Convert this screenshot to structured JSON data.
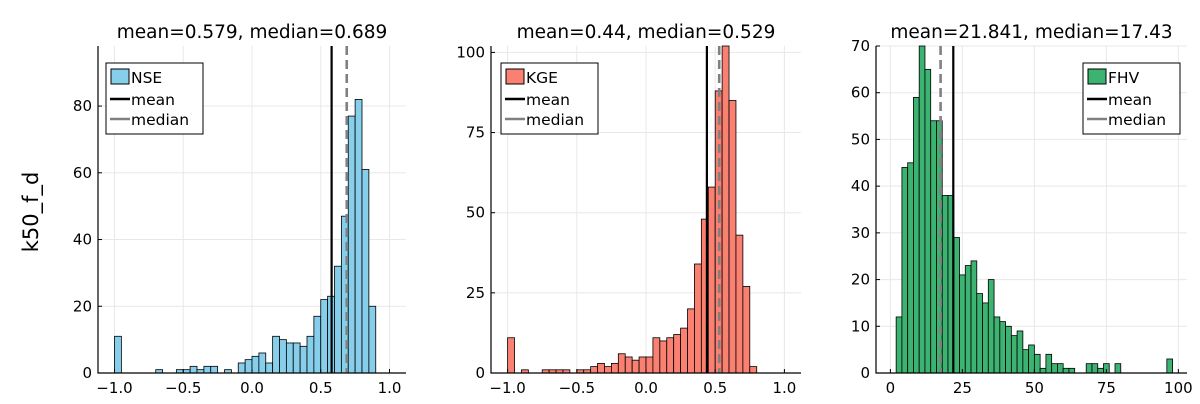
{
  "figure": {
    "ylabel": "k50_f_d"
  },
  "chart_data": [
    {
      "type": "histogram",
      "title": "mean=0.579, median=0.689",
      "series_name": "NSE",
      "color": "#87ceeb",
      "mean": 0.579,
      "median": 0.689,
      "xlim": [
        -1.12,
        1.12
      ],
      "ylim": [
        0,
        98
      ],
      "xticks": [
        -1.0,
        -0.5,
        0.0,
        0.5,
        1.0
      ],
      "xtick_labels": [
        "−1.0",
        "−0.5",
        "0.0",
        "0.5",
        "1.0"
      ],
      "yticks": [
        0,
        20,
        40,
        60,
        80
      ],
      "ytick_labels": [
        "0",
        "20",
        "40",
        "60",
        "80"
      ],
      "legend": {
        "position": "top-left",
        "entries": [
          "NSE",
          "mean",
          "median"
        ]
      },
      "bins": [
        [
          -1.0,
          -0.95,
          11
        ],
        [
          -0.7,
          -0.65,
          1
        ],
        [
          -0.55,
          -0.5,
          1
        ],
        [
          -0.5,
          -0.45,
          1
        ],
        [
          -0.45,
          -0.4,
          2
        ],
        [
          -0.4,
          -0.35,
          1
        ],
        [
          -0.35,
          -0.3,
          2
        ],
        [
          -0.3,
          -0.25,
          2
        ],
        [
          -0.2,
          -0.15,
          1
        ],
        [
          -0.1,
          -0.05,
          3
        ],
        [
          -0.05,
          0.0,
          4
        ],
        [
          0.0,
          0.05,
          5
        ],
        [
          0.05,
          0.1,
          6
        ],
        [
          0.1,
          0.15,
          3
        ],
        [
          0.15,
          0.2,
          11
        ],
        [
          0.2,
          0.25,
          10
        ],
        [
          0.25,
          0.3,
          9
        ],
        [
          0.3,
          0.35,
          9
        ],
        [
          0.35,
          0.4,
          8
        ],
        [
          0.4,
          0.45,
          11
        ],
        [
          0.45,
          0.5,
          17
        ],
        [
          0.5,
          0.55,
          22
        ],
        [
          0.55,
          0.6,
          23
        ],
        [
          0.6,
          0.65,
          32
        ],
        [
          0.65,
          0.7,
          47
        ],
        [
          0.7,
          0.75,
          77
        ],
        [
          0.75,
          0.8,
          82
        ],
        [
          0.8,
          0.85,
          61
        ],
        [
          0.85,
          0.9,
          20
        ]
      ]
    },
    {
      "type": "histogram",
      "title": "mean=0.44, median=0.529",
      "series_name": "KGE",
      "color": "#fa8072",
      "mean": 0.44,
      "median": 0.529,
      "xlim": [
        -1.12,
        1.12
      ],
      "ylim": [
        0,
        102
      ],
      "xticks": [
        -1.0,
        -0.5,
        0.0,
        0.5,
        1.0
      ],
      "xtick_labels": [
        "−1.0",
        "−0.5",
        "0.0",
        "0.5",
        "1.0"
      ],
      "yticks": [
        0,
        25,
        50,
        75,
        100
      ],
      "ytick_labels": [
        "0",
        "25",
        "50",
        "75",
        "100"
      ],
      "legend": {
        "position": "top-left",
        "entries": [
          "KGE",
          "mean",
          "median"
        ]
      },
      "bins": [
        [
          -1.0,
          -0.95,
          11
        ],
        [
          -0.9,
          -0.85,
          1
        ],
        [
          -0.75,
          -0.7,
          1
        ],
        [
          -0.7,
          -0.65,
          1
        ],
        [
          -0.65,
          -0.6,
          1
        ],
        [
          -0.6,
          -0.55,
          1
        ],
        [
          -0.5,
          -0.45,
          1
        ],
        [
          -0.45,
          -0.4,
          1
        ],
        [
          -0.4,
          -0.35,
          2
        ],
        [
          -0.35,
          -0.3,
          3
        ],
        [
          -0.3,
          -0.25,
          2
        ],
        [
          -0.25,
          -0.2,
          3
        ],
        [
          -0.2,
          -0.15,
          6
        ],
        [
          -0.15,
          -0.1,
          5
        ],
        [
          -0.1,
          -0.05,
          4
        ],
        [
          -0.05,
          0.0,
          5
        ],
        [
          0.0,
          0.05,
          5
        ],
        [
          0.05,
          0.1,
          11
        ],
        [
          0.1,
          0.15,
          10
        ],
        [
          0.15,
          0.2,
          11
        ],
        [
          0.2,
          0.25,
          12
        ],
        [
          0.25,
          0.3,
          14
        ],
        [
          0.3,
          0.35,
          20
        ],
        [
          0.35,
          0.4,
          34
        ],
        [
          0.4,
          0.45,
          48
        ],
        [
          0.45,
          0.5,
          58
        ],
        [
          0.5,
          0.55,
          88
        ],
        [
          0.55,
          0.6,
          102
        ],
        [
          0.6,
          0.65,
          85
        ],
        [
          0.65,
          0.7,
          43
        ],
        [
          0.7,
          0.75,
          27
        ],
        [
          0.75,
          0.8,
          2
        ]
      ]
    },
    {
      "type": "histogram",
      "title": "mean=21.841, median=17.43",
      "series_name": "FHV",
      "color": "#3cb371",
      "mean": 21.841,
      "median": 17.43,
      "xlim": [
        -5,
        103
      ],
      "ylim": [
        0,
        70
      ],
      "xticks": [
        0,
        25,
        50,
        75,
        100
      ],
      "xtick_labels": [
        "0",
        "25",
        "50",
        "75",
        "100"
      ],
      "yticks": [
        0,
        10,
        20,
        30,
        40,
        50,
        60,
        70
      ],
      "ytick_labels": [
        "0",
        "10",
        "20",
        "30",
        "40",
        "50",
        "60",
        "70"
      ],
      "legend": {
        "position": "top-right",
        "entries": [
          "FHV",
          "mean",
          "median"
        ]
      },
      "bins": [
        [
          2,
          4,
          12
        ],
        [
          4,
          6,
          44
        ],
        [
          6,
          8,
          45
        ],
        [
          8,
          10,
          59
        ],
        [
          10,
          12,
          70
        ],
        [
          12,
          14,
          65
        ],
        [
          14,
          16,
          54
        ],
        [
          16,
          18,
          54
        ],
        [
          18,
          20,
          38
        ],
        [
          20,
          22,
          38
        ],
        [
          22,
          24,
          29
        ],
        [
          24,
          26,
          21
        ],
        [
          26,
          28,
          23
        ],
        [
          28,
          30,
          24
        ],
        [
          30,
          32,
          17
        ],
        [
          32,
          34,
          15
        ],
        [
          34,
          36,
          20
        ],
        [
          36,
          38,
          12
        ],
        [
          38,
          40,
          11
        ],
        [
          40,
          42,
          10
        ],
        [
          42,
          44,
          8
        ],
        [
          44,
          46,
          9
        ],
        [
          46,
          48,
          5
        ],
        [
          48,
          50,
          6
        ],
        [
          50,
          52,
          4
        ],
        [
          52,
          54,
          1
        ],
        [
          54,
          56,
          4
        ],
        [
          56,
          58,
          2
        ],
        [
          58,
          60,
          2
        ],
        [
          60,
          62,
          1
        ],
        [
          62,
          64,
          1
        ],
        [
          68,
          70,
          2
        ],
        [
          70,
          72,
          2
        ],
        [
          72,
          74,
          1
        ],
        [
          74,
          76,
          2
        ],
        [
          78,
          80,
          2
        ],
        [
          96,
          98,
          3
        ]
      ]
    }
  ]
}
